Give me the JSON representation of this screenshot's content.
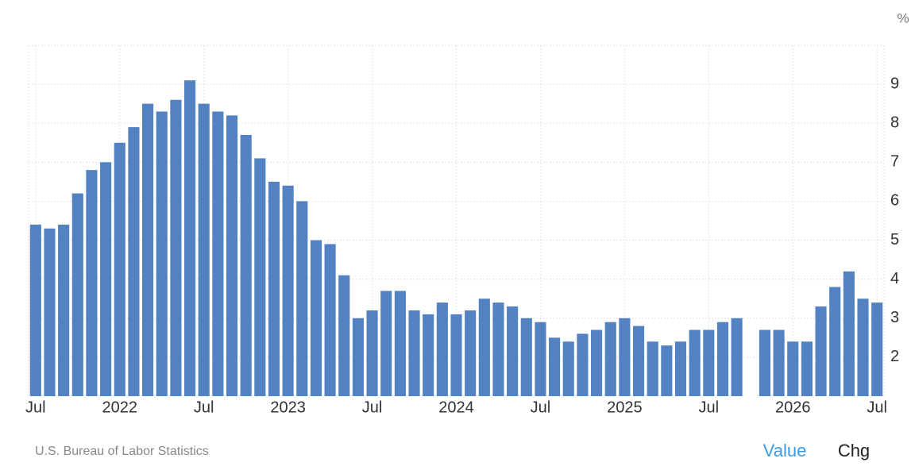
{
  "chart_data": {
    "type": "bar",
    "unit": "%",
    "categories": [
      "Jul",
      null,
      null,
      null,
      null,
      null,
      "2022",
      null,
      null,
      null,
      null,
      null,
      "Jul",
      null,
      null,
      null,
      null,
      null,
      "2023",
      null,
      null,
      null,
      null,
      null,
      "Jul",
      null,
      null,
      null,
      null,
      null,
      "2024",
      null,
      null,
      null,
      null,
      null,
      "Jul",
      null,
      null,
      null,
      null,
      null,
      "2025",
      null,
      null,
      null,
      null,
      null,
      "Jul",
      null,
      null,
      null,
      null,
      null,
      "2026",
      null,
      null,
      null,
      null,
      null,
      "Jul"
    ],
    "values": [
      5.4,
      5.3,
      5.4,
      6.2,
      6.8,
      7.0,
      7.5,
      7.9,
      8.5,
      8.3,
      8.6,
      9.1,
      8.5,
      8.3,
      8.2,
      7.7,
      7.1,
      6.5,
      6.4,
      6.0,
      5.0,
      4.9,
      4.1,
      3.0,
      3.2,
      3.7,
      3.7,
      3.2,
      3.1,
      3.4,
      3.1,
      3.2,
      3.5,
      3.4,
      3.3,
      3.0,
      2.9,
      2.5,
      2.4,
      2.6,
      2.7,
      2.9,
      3.0,
      2.8,
      2.4,
      2.3,
      2.4,
      2.7,
      2.7,
      2.9,
      3.0,
      null,
      2.7,
      2.7,
      2.4,
      2.4,
      3.3,
      3.8,
      4.2,
      3.5,
      3.4
    ],
    "color": "#5282c2",
    "ylim": [
      1,
      10
    ],
    "yticks": [
      2,
      3,
      4,
      5,
      6,
      7,
      8,
      9
    ],
    "grid": true,
    "source": "U.S. Bureau of Labor Statistics"
  },
  "controls": [
    "Value",
    "Chg"
  ]
}
